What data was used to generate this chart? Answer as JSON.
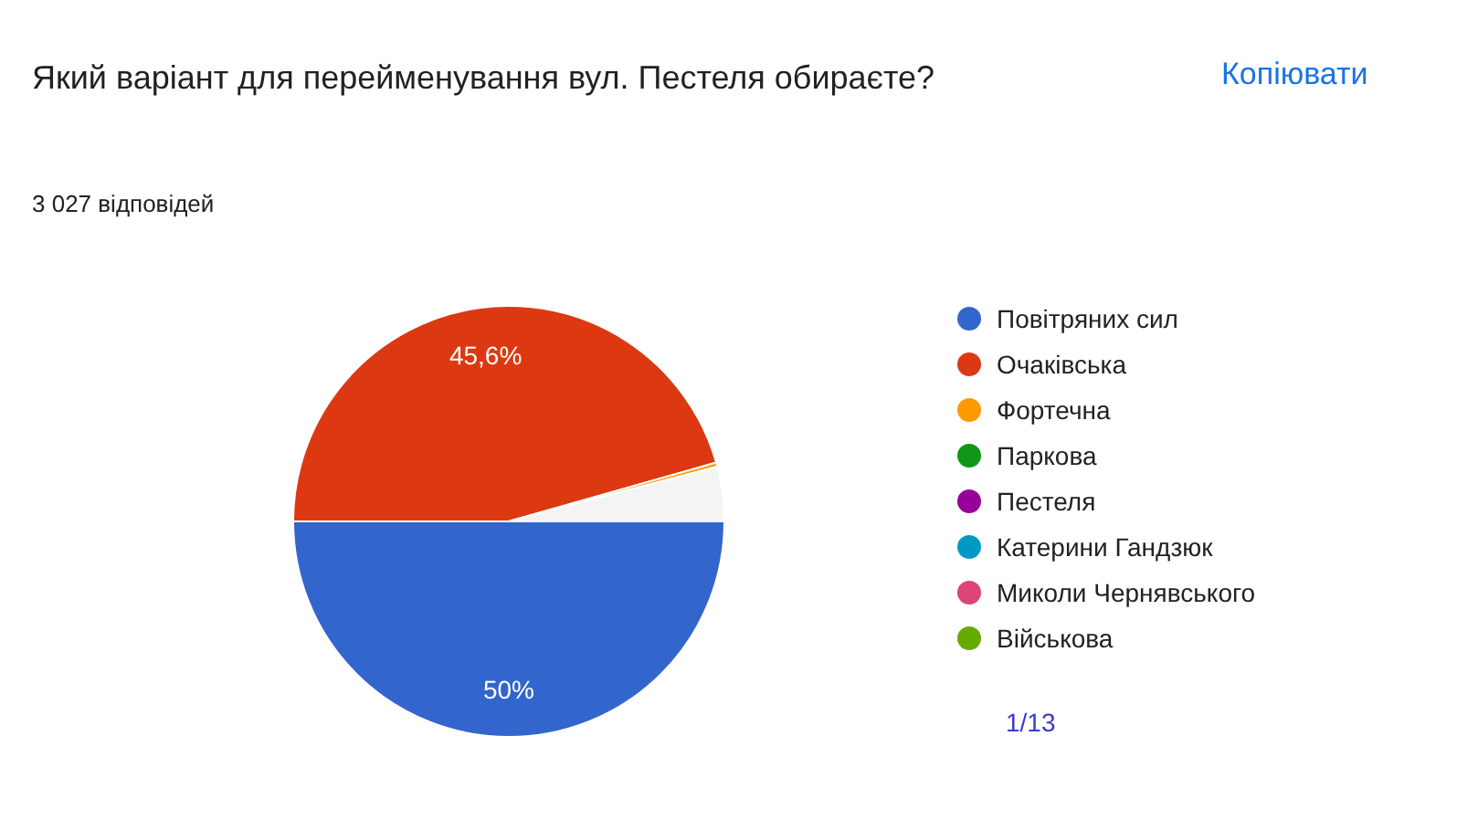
{
  "chart_data": {
    "type": "pie",
    "title": "Який варіант для перейменування вул. Пестеля обираєте?",
    "subtitle": "3 027 відповідей",
    "categories": [
      "Повітряних сил",
      "Очаківська",
      "Фортечна",
      "Паркова",
      "Пестеля",
      "Катерини Гандзюк",
      "Миколи Чернявського",
      "Військова",
      null
    ],
    "values": [
      50,
      45.6,
      0.3,
      null,
      null,
      null,
      null,
      null,
      4.1
    ],
    "colors": [
      "#3366cc",
      "#dc3912",
      "#ff9900",
      "#109618",
      "#990099",
      "#0099c6",
      "#dd4477",
      "#66aa00",
      "#f4f4f4"
    ],
    "value_labels": [
      "50%",
      "45,6%",
      null,
      null,
      null,
      null,
      null,
      null,
      null
    ],
    "legend": "right",
    "annotations": [
      "Копіювати",
      "1/13"
    ]
  }
}
